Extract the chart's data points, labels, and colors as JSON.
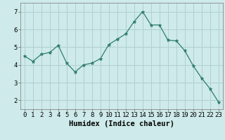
{
  "x": [
    0,
    1,
    2,
    3,
    4,
    5,
    6,
    7,
    8,
    9,
    10,
    11,
    12,
    13,
    14,
    15,
    16,
    17,
    18,
    19,
    20,
    21,
    22,
    23
  ],
  "y": [
    4.5,
    4.2,
    4.6,
    4.7,
    5.1,
    4.1,
    3.6,
    4.0,
    4.1,
    4.35,
    5.15,
    5.45,
    5.75,
    6.45,
    7.0,
    6.25,
    6.25,
    5.4,
    5.35,
    4.8,
    3.95,
    3.25,
    2.65,
    1.9
  ],
  "line_color": "#2e7d6e",
  "marker": "*",
  "marker_size": 3.5,
  "bg_color": "#ceeaea",
  "grid_color": "#b0d0d0",
  "xlabel": "Humidex (Indice chaleur)",
  "xlabel_fontsize": 7.5,
  "tick_fontsize": 6.5,
  "xlim": [
    -0.5,
    23.5
  ],
  "ylim": [
    1.5,
    7.5
  ],
  "yticks": [
    2,
    3,
    4,
    5,
    6,
    7
  ],
  "xticks": [
    0,
    1,
    2,
    3,
    4,
    5,
    6,
    7,
    8,
    9,
    10,
    11,
    12,
    13,
    14,
    15,
    16,
    17,
    18,
    19,
    20,
    21,
    22,
    23
  ]
}
